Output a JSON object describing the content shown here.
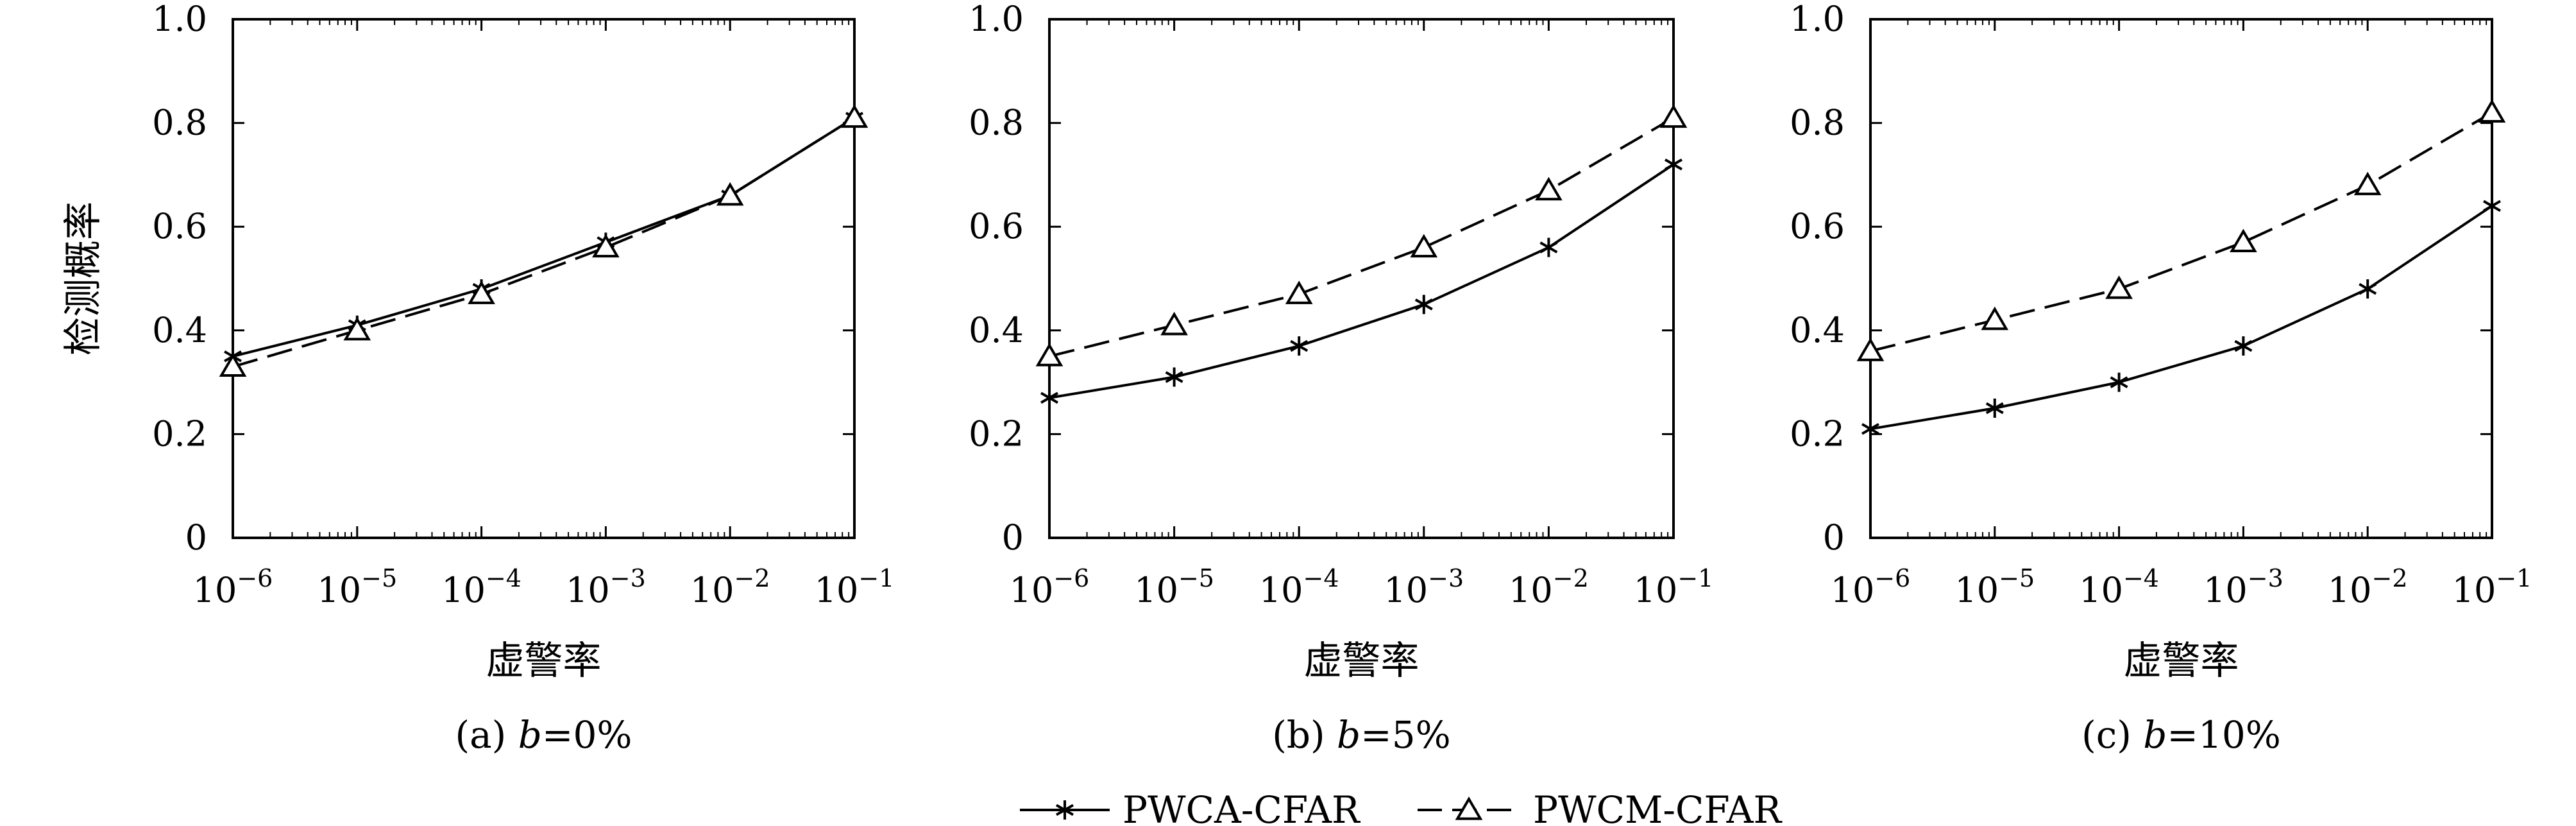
{
  "legend": {
    "entries": [
      {
        "label": "PWCA-CFAR",
        "marker": "asterisk",
        "dash": "solid"
      },
      {
        "label": "PWCM-CFAR",
        "marker": "triangle",
        "dash": "dashed"
      }
    ]
  },
  "chart_data": [
    {
      "type": "line",
      "caption": "(a) b=0%",
      "xlabel": "虚警率",
      "ylabel": "检测概率",
      "xscale": "log",
      "x": [
        1e-06,
        1e-05,
        0.0001,
        0.001,
        0.01,
        0.1
      ],
      "xticks": [
        "10^-6",
        "10^-5",
        "10^-4",
        "10^-3",
        "10^-2",
        "10^-1"
      ],
      "ylim": [
        0,
        1.0
      ],
      "yticks": [
        "0",
        "0.2",
        "0.4",
        "0.6",
        "0.8",
        "1.0"
      ],
      "series": [
        {
          "name": "PWCA-CFAR",
          "values": [
            0.35,
            0.41,
            0.48,
            0.57,
            0.66,
            0.81
          ]
        },
        {
          "name": "PWCM-CFAR",
          "values": [
            0.33,
            0.4,
            0.47,
            0.56,
            0.66,
            0.81
          ]
        }
      ]
    },
    {
      "type": "line",
      "caption": "(b) b=5%",
      "xlabel": "虚警率",
      "ylabel": "",
      "xscale": "log",
      "x": [
        1e-06,
        1e-05,
        0.0001,
        0.001,
        0.01,
        0.1
      ],
      "xticks": [
        "10^-6",
        "10^-5",
        "10^-4",
        "10^-3",
        "10^-2",
        "10^-1"
      ],
      "ylim": [
        0,
        1.0
      ],
      "yticks": [
        "0",
        "0.2",
        "0.4",
        "0.6",
        "0.8",
        "1.0"
      ],
      "series": [
        {
          "name": "PWCA-CFAR",
          "values": [
            0.27,
            0.31,
            0.37,
            0.45,
            0.56,
            0.72
          ]
        },
        {
          "name": "PWCM-CFAR",
          "values": [
            0.35,
            0.41,
            0.47,
            0.56,
            0.67,
            0.81
          ]
        }
      ]
    },
    {
      "type": "line",
      "caption": "(c) b=10%",
      "xlabel": "虚警率",
      "ylabel": "",
      "xscale": "log",
      "x": [
        1e-06,
        1e-05,
        0.0001,
        0.001,
        0.01,
        0.1
      ],
      "xticks": [
        "10^-6",
        "10^-5",
        "10^-4",
        "10^-3",
        "10^-2",
        "10^-1"
      ],
      "ylim": [
        0,
        1.0
      ],
      "yticks": [
        "0",
        "0.2",
        "0.4",
        "0.6",
        "0.8",
        "1.0"
      ],
      "series": [
        {
          "name": "PWCA-CFAR",
          "values": [
            0.21,
            0.25,
            0.3,
            0.37,
            0.48,
            0.64
          ]
        },
        {
          "name": "PWCM-CFAR",
          "values": [
            0.36,
            0.42,
            0.48,
            0.57,
            0.68,
            0.82
          ]
        }
      ]
    }
  ]
}
